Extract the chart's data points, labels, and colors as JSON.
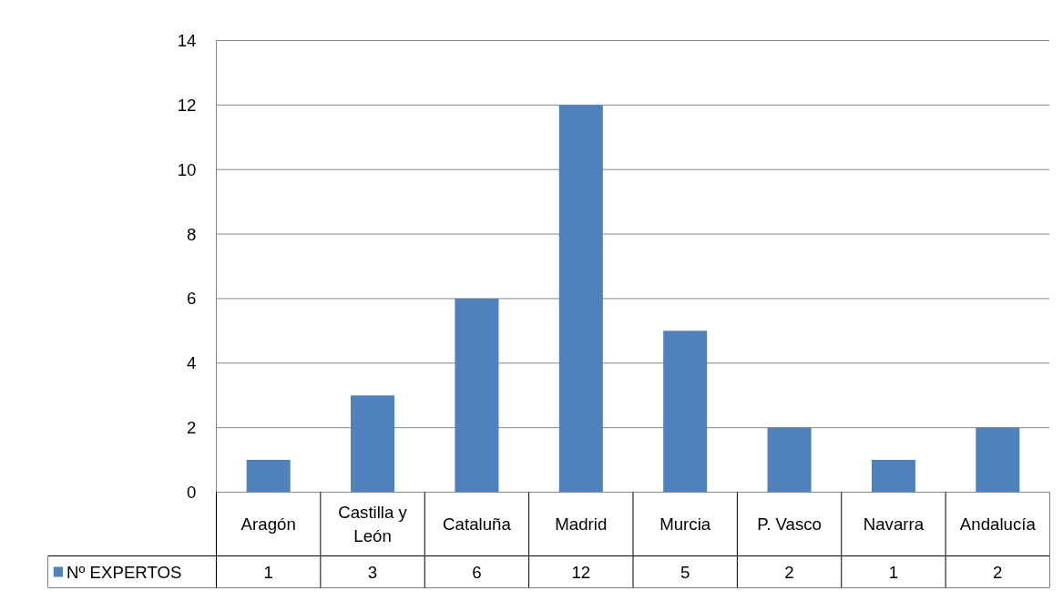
{
  "chart_data": {
    "type": "bar",
    "categories": [
      "Aragón",
      "Castilla y León",
      "Cataluña",
      "Madrid",
      "Murcia",
      "P. Vasco",
      "Navarra",
      "Andalucía"
    ],
    "series": [
      {
        "name": "Nº EXPERTOS",
        "color": "#4f81bd",
        "values": [
          1,
          3,
          6,
          12,
          5,
          2,
          1,
          2
        ]
      }
    ],
    "ylim": [
      0,
      14
    ],
    "yticks": [
      0,
      2,
      4,
      6,
      8,
      10,
      12,
      14
    ],
    "grid": "y",
    "legend": "bottom",
    "data_labels": true
  }
}
